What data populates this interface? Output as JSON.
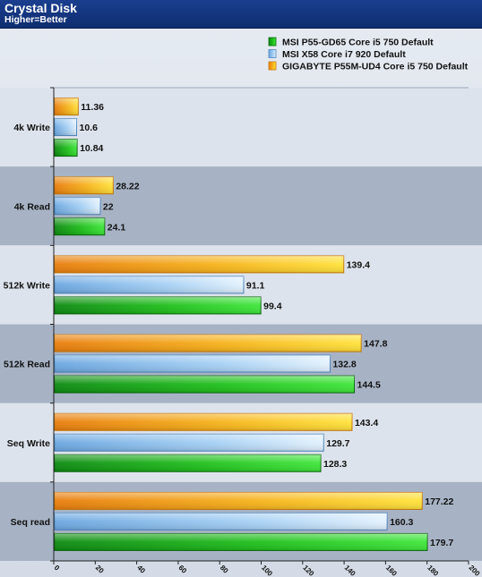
{
  "header": {
    "title": "Crystal Disk",
    "subtitle": "Higher=Better"
  },
  "chart_data": {
    "type": "bar",
    "orientation": "horizontal",
    "title": "Crystal Disk",
    "subtitle": "Higher=Better",
    "xlim": [
      0,
      200
    ],
    "x_ticks": [
      "0",
      "20",
      "40",
      "60",
      "80",
      "100",
      "120",
      "140",
      "160",
      "180",
      "200"
    ],
    "categories": [
      "4k Write",
      "4k Read",
      "512k Write",
      "512k Read",
      "Seq Write",
      "Seq read"
    ],
    "series": [
      {
        "name": "MSI P55-GD65 Core i5 750 Default",
        "color": "#22c01e",
        "values_text": [
          "10.84",
          "24.1",
          "99.4",
          "144.5",
          "128.3",
          "179.7"
        ],
        "values": [
          10.84,
          24.1,
          99.4,
          144.5,
          128.3,
          179.7
        ]
      },
      {
        "name": "MSI X58 Core i7 920 Default",
        "color": "#8fc3f0",
        "values_text": [
          "10.6",
          "22",
          "91.1",
          "132.8",
          "129.7",
          "160.3"
        ],
        "values": [
          10.6,
          22,
          91.1,
          132.8,
          129.7,
          160.3
        ]
      },
      {
        "name": "GIGABYTE P55M-UD4 Core i5 750 Default",
        "color": "#f5a81a",
        "values_text": [
          "11.36",
          "28.22",
          "139.4",
          "147.8",
          "143.4",
          "177.22"
        ],
        "values": [
          11.36,
          28.22,
          139.4,
          147.8,
          143.4,
          177.22
        ]
      }
    ],
    "legend_position": "top-right",
    "grid": false,
    "band_colors": [
      "#dde3ec",
      "#a7b3c5"
    ]
  }
}
